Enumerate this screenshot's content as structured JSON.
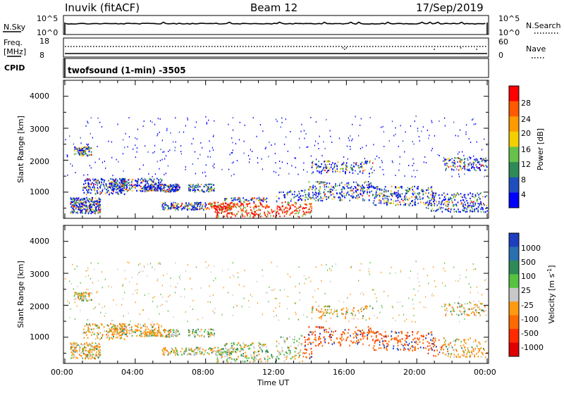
{
  "header": {
    "station": "Inuvik (fitACF)",
    "beam": "Beam 12",
    "date": "17/Sep/2019"
  },
  "nsky_panel": {
    "left_label": "N.Sky",
    "right_label": "N.Search",
    "left_ticks": [
      "10^5",
      "10^0"
    ],
    "right_ticks": [
      "10^5",
      "10^0"
    ]
  },
  "freq_panel": {
    "left_label_1": "Freq.",
    "left_label_2": "[MHz]",
    "right_label": "Nave",
    "left_ticks": [
      "18",
      "8"
    ],
    "right_ticks": [
      "60",
      "0"
    ]
  },
  "cpid_panel": {
    "label": "CPID",
    "text": "twofsound (1-min) -3505"
  },
  "power_panel": {
    "ylabel": "Slant Range [km]",
    "yticks": [
      "4000",
      "3000",
      "2000",
      "1000"
    ],
    "colorbar_label": "Power [dB]",
    "colorbar_ticks": [
      "28",
      "24",
      "20",
      "16",
      "12",
      "8",
      "4"
    ],
    "colors": [
      "#0000ff",
      "#1f4fbf",
      "#2e8b57",
      "#66c24a",
      "#f2d000",
      "#ff9a00",
      "#ff5a00",
      "#ff0000"
    ]
  },
  "velocity_panel": {
    "ylabel": "Slant Range [km]",
    "yticks": [
      "4000",
      "3000",
      "2000",
      "1000"
    ],
    "colorbar_label": "Velocity [m s",
    "colorbar_label_sup": "-1",
    "colorbar_label_end": "]",
    "colorbar_ticks": [
      "1000",
      "500",
      "100",
      "25",
      "-25",
      "-100",
      "-500",
      "-1000"
    ],
    "colors": [
      "#1d3fbf",
      "#2a6fb0",
      "#2e8b57",
      "#55c240",
      "#c8c8c8",
      "#ff9a10",
      "#ff6a00",
      "#ff2a00",
      "#e00000"
    ]
  },
  "x_axis": {
    "ticks": [
      "00:00",
      "04:00",
      "08:00",
      "12:00",
      "16:00",
      "20:00",
      "00:00"
    ],
    "xlabel": "Time UT"
  }
}
